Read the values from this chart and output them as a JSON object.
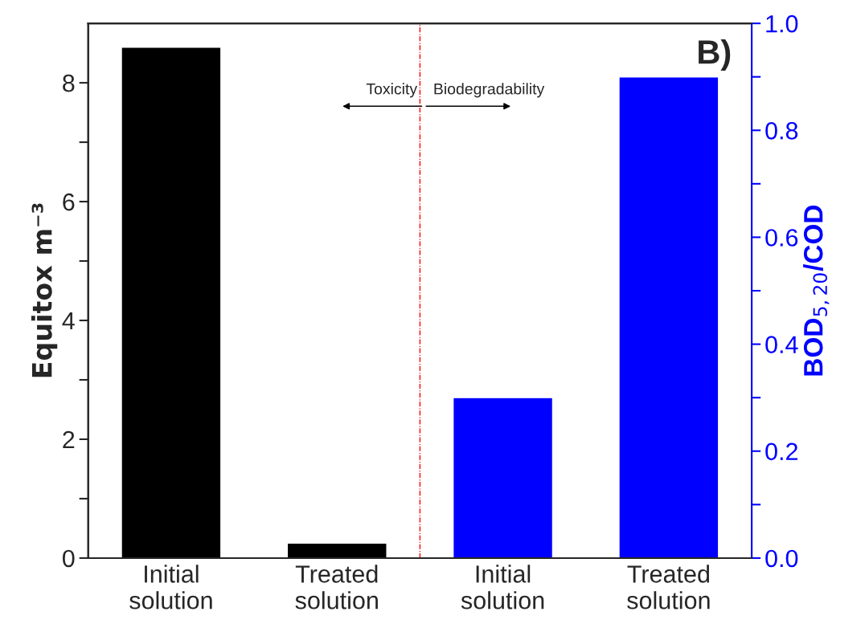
{
  "chart_data": {
    "type": "bar",
    "categories": [
      "Initial\nsolution",
      "Treated\nsolution",
      "Initial\nsolution",
      "Treated\nsolution"
    ],
    "series": [
      {
        "color": "#000000",
        "values": [
          8.6,
          0.25,
          null,
          null
        ]
      },
      {
        "color": "#0000ff",
        "values": [
          null,
          null,
          0.3,
          0.9
        ],
        "axis": "y2"
      }
    ],
    "ylabel": "Equitox m⁻³",
    "y2label": "BOD$_{5,20}$/COD",
    "ylim": [
      0,
      9
    ],
    "yticks": [
      0,
      {
        "value": 1,
        "label": null
      },
      2,
      {
        "value": 3,
        "label": null
      },
      4,
      {
        "value": 5,
        "label": null
      },
      6,
      {
        "value": 7,
        "label": null
      },
      8
    ],
    "y2lim": [
      0,
      1.0
    ],
    "y2ticks": [
      {
        "value": 0,
        "label": "0.0"
      },
      {
        "value": 0.1,
        "label": null
      },
      0.2,
      {
        "value": 0.3,
        "label": null
      },
      0.4,
      {
        "value": 0.5,
        "label": null
      },
      0.6,
      {
        "value": 0.7,
        "label": null
      },
      0.8,
      {
        "value": 0.9,
        "label": null
      },
      {
        "value": 1.0,
        "label": "1.0"
      }
    ],
    "annotations": [
      "B)",
      "Toxicity",
      "Biodegradability"
    ],
    "grid": false,
    "legend": false
  }
}
